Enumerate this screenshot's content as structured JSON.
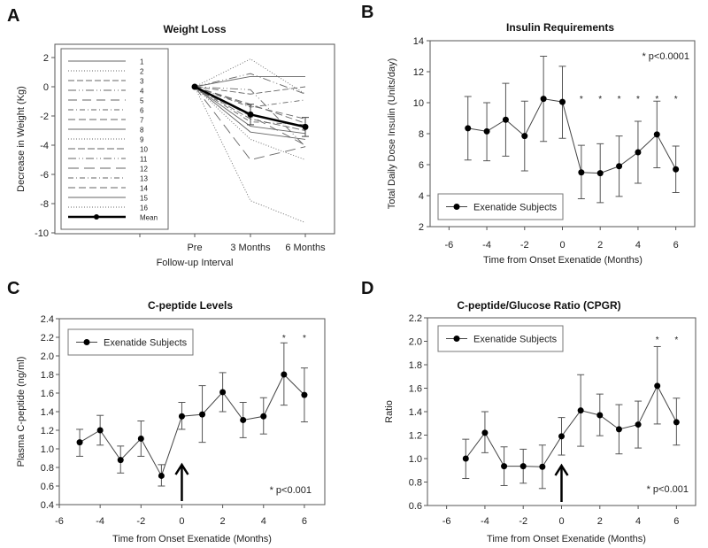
{
  "chart_data": [
    {
      "panel_label": "A",
      "type": "line",
      "title": "Weight Loss",
      "xlabel": "Follow-up Interval",
      "ylabel": "Decrease in Weight (Kg)",
      "categories": [
        "Pre",
        "3 Months",
        "6 Months"
      ],
      "ylim": [
        -10,
        3
      ],
      "yticks": [
        2,
        0,
        -2,
        -4,
        -6,
        -8,
        -10
      ],
      "series": [
        {
          "name": "1",
          "values": [
            0,
            0.7,
            0.7
          ]
        },
        {
          "name": "2",
          "values": [
            0,
            1.9,
            -0.5
          ]
        },
        {
          "name": "3",
          "values": [
            0,
            -0.5,
            0
          ]
        },
        {
          "name": "4",
          "values": [
            0,
            0.9,
            -0.5
          ]
        },
        {
          "name": "5",
          "values": [
            0,
            -2.0,
            -4.0
          ]
        },
        {
          "name": "6",
          "values": [
            0,
            -1.4,
            -0.9
          ]
        },
        {
          "name": "7",
          "values": [
            0,
            -1.3,
            -2.2
          ]
        },
        {
          "name": "8",
          "values": [
            0,
            -2.7,
            -3.2
          ]
        },
        {
          "name": "9",
          "values": [
            0,
            -3.6,
            -5.0
          ]
        },
        {
          "name": "10",
          "values": [
            0,
            -2.2,
            -3.0
          ]
        },
        {
          "name": "11",
          "values": [
            0,
            -0.2,
            -4.1
          ]
        },
        {
          "name": "12",
          "values": [
            0,
            -5.0,
            -4.1
          ]
        },
        {
          "name": "13",
          "values": [
            0,
            -2.4,
            -2.6
          ]
        },
        {
          "name": "14",
          "values": [
            0,
            -1.2,
            -2.5
          ]
        },
        {
          "name": "15",
          "values": [
            0,
            -3.1,
            -3.6
          ]
        },
        {
          "name": "16",
          "values": [
            0,
            -7.8,
            -9.3
          ]
        },
        {
          "name": "Mean",
          "values": [
            0,
            -1.9,
            -2.75
          ],
          "err": [
            0,
            0.7,
            0.65
          ]
        }
      ],
      "legend": "inside-left"
    },
    {
      "panel_label": "B",
      "type": "line",
      "title": "Insulin Requirements",
      "xlabel": "Time from Onset Exenatide (Months)",
      "ylabel": "Total Daily Dose Insulin (Units/day)",
      "xlim": [
        -7,
        7
      ],
      "ylim": [
        2,
        14
      ],
      "xticks": [
        -6,
        -4,
        -2,
        0,
        2,
        4,
        6
      ],
      "yticks": [
        2,
        4,
        6,
        8,
        10,
        12,
        14
      ],
      "x": [
        -5,
        -4,
        -3,
        -2,
        -1,
        0,
        1,
        2,
        3,
        4,
        5,
        6
      ],
      "series": [
        {
          "name": "Exenatide Subjects",
          "values": [
            8.35,
            8.15,
            8.9,
            7.85,
            10.25,
            10.05,
            5.5,
            5.45,
            5.9,
            6.8,
            7.95,
            5.7
          ],
          "err_low": [
            6.3,
            6.25,
            6.55,
            5.6,
            7.5,
            7.7,
            3.8,
            3.55,
            3.95,
            4.8,
            5.8,
            4.2
          ],
          "err_high": [
            10.4,
            10.0,
            11.25,
            10.1,
            13.0,
            12.35,
            7.25,
            7.35,
            7.85,
            8.8,
            10.1,
            7.2
          ]
        }
      ],
      "significant_x": [
        1,
        2,
        3,
        4,
        5,
        6
      ],
      "star_y": 10.3,
      "star": "*",
      "annotation": "* p<0.0001",
      "legend": "bottom-left"
    },
    {
      "panel_label": "C",
      "type": "line",
      "title": "C-peptide Levels",
      "xlabel": "Time from Onset Exenatide (Months)",
      "ylabel": "Plasma C-peptide (ng/ml)",
      "xlim": [
        -6,
        7
      ],
      "ylim": [
        0.4,
        2.4
      ],
      "xticks": [
        -6,
        -4,
        -2,
        0,
        2,
        4,
        6
      ],
      "yticks": [
        "0.4",
        "0.6",
        "0.8",
        "1.0",
        "1.2",
        "1.4",
        "1.6",
        "1.8",
        "2.0",
        "2.2",
        "2.4"
      ],
      "x": [
        -5,
        -4,
        -3,
        -2,
        -1,
        0,
        1,
        2,
        3,
        4,
        5,
        6
      ],
      "series": [
        {
          "name": "Exenatide Subjects",
          "values": [
            1.07,
            1.2,
            0.88,
            1.11,
            0.71,
            1.35,
            1.37,
            1.61,
            1.31,
            1.35,
            1.8,
            1.58
          ],
          "err_low": [
            0.92,
            1.04,
            0.74,
            0.92,
            0.6,
            1.21,
            1.07,
            1.4,
            1.12,
            1.16,
            1.47,
            1.29
          ],
          "err_high": [
            1.21,
            1.36,
            1.03,
            1.3,
            0.83,
            1.5,
            1.68,
            1.82,
            1.5,
            1.55,
            2.14,
            1.87
          ]
        }
      ],
      "significant_x": [
        5,
        6
      ],
      "star_y": 2.2,
      "star": "*",
      "arrow_x": 0,
      "annotation": "* p<0.001",
      "legend": "top-left"
    },
    {
      "panel_label": "D",
      "type": "line",
      "title": "C-peptide/Glucose Ratio (CPGR)",
      "xlabel": "Time from Onset Exenatide (Months)",
      "ylabel": "Ratio",
      "xlim": [
        -7,
        7
      ],
      "ylim": [
        0.6,
        2.2
      ],
      "xticks": [
        -6,
        -4,
        -2,
        0,
        2,
        4,
        6
      ],
      "yticks": [
        "0.6",
        "0.8",
        "1.0",
        "1.2",
        "1.4",
        "1.6",
        "1.8",
        "2.0",
        "2.2"
      ],
      "x": [
        -5,
        -4,
        -3,
        -2,
        -1,
        0,
        1,
        2,
        3,
        4,
        5,
        6
      ],
      "series": [
        {
          "name": "Exenatide Subjects",
          "values": [
            1.0,
            1.22,
            0.935,
            0.935,
            0.93,
            1.19,
            1.41,
            1.37,
            1.25,
            1.29,
            1.62,
            1.31
          ],
          "err_low": [
            0.83,
            1.05,
            0.77,
            0.79,
            0.745,
            1.03,
            1.105,
            1.195,
            1.04,
            1.09,
            1.295,
            1.115
          ],
          "err_high": [
            1.165,
            1.4,
            1.1,
            1.08,
            1.115,
            1.35,
            1.715,
            1.55,
            1.46,
            1.49,
            1.955,
            1.515
          ]
        }
      ],
      "significant_x": [
        5,
        6
      ],
      "star_y": 2.02,
      "star": "*",
      "arrow_x": 0,
      "annotation": "* p<0.001",
      "legend": "top-left"
    }
  ]
}
